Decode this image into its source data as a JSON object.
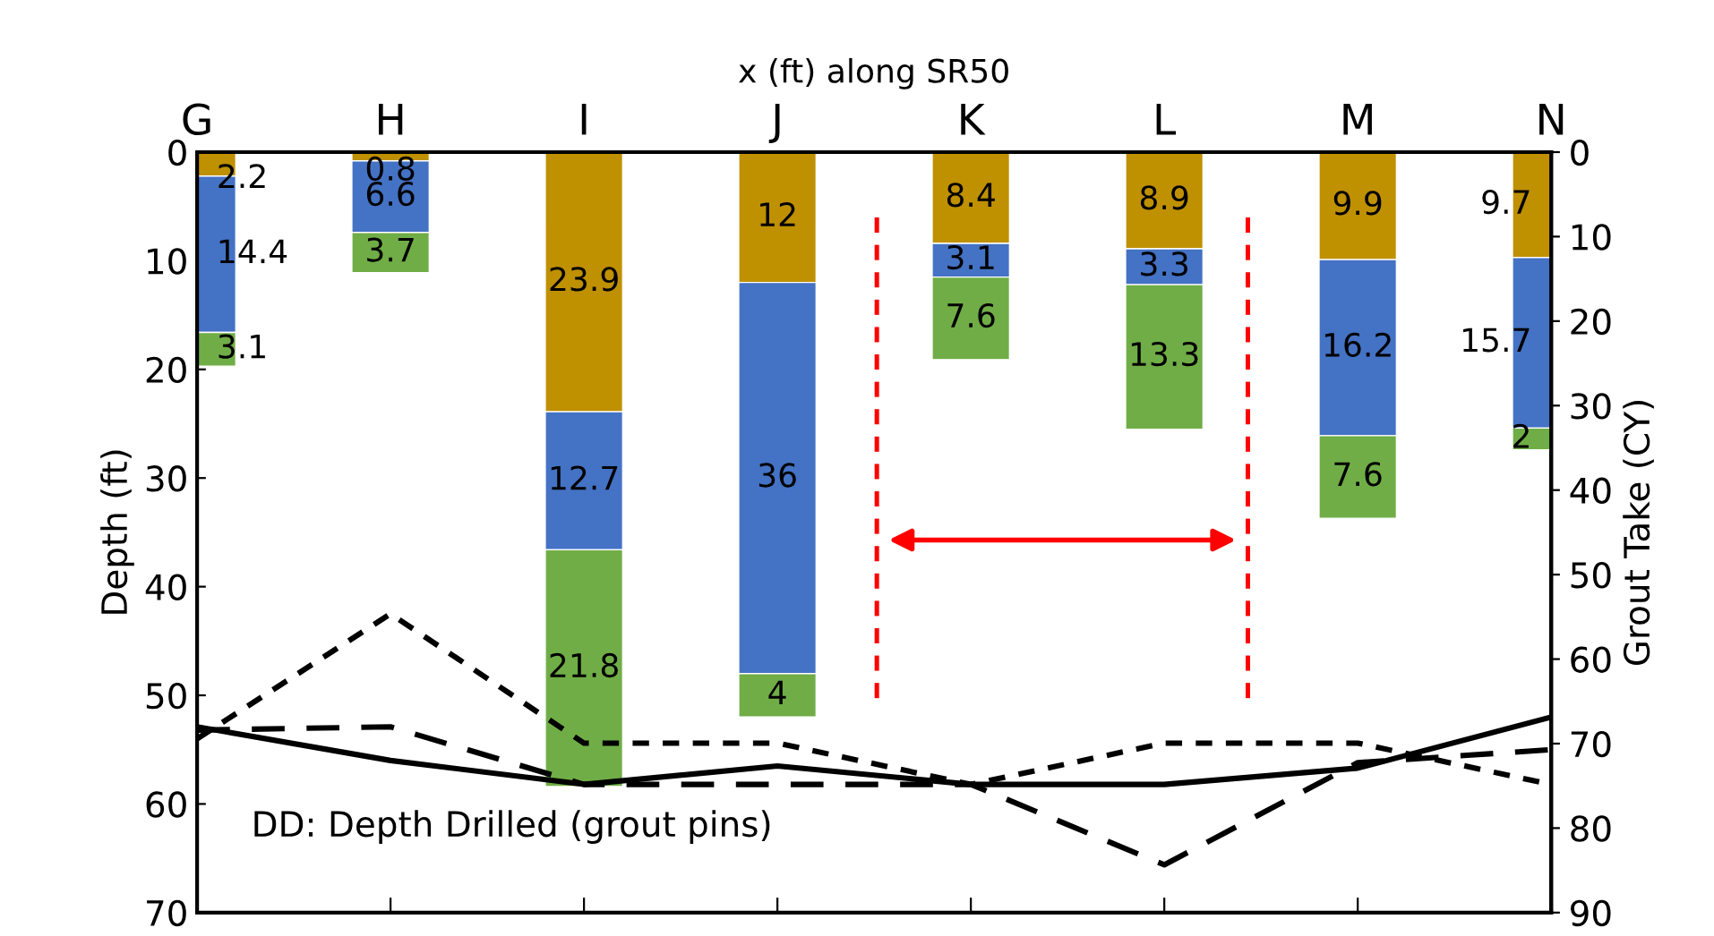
{
  "chart_data": {
    "type": "bar",
    "stacked": true,
    "xlabel": "x (ft) along SR50",
    "ylabel": "Depth (ft)",
    "y2label": "Grout Take (CY)",
    "categories": [
      "G",
      "H",
      "I",
      "J",
      "K",
      "L",
      "M",
      "N"
    ],
    "series": [
      {
        "color": "#bf9000",
        "values": [
          2.2,
          0.8,
          23.9,
          12,
          8.4,
          8.9,
          9.9,
          9.7
        ],
        "value_labels": [
          "2.2",
          "0.8",
          "23.9",
          "12",
          "8.4",
          "8.9",
          "9.9",
          "9.7"
        ]
      },
      {
        "color": "#4472c4",
        "values": [
          14.4,
          6.6,
          12.7,
          36,
          3.1,
          3.3,
          16.2,
          15.7
        ],
        "value_labels": [
          "14.4",
          "6.6",
          "12.7",
          "36",
          "3.1",
          "3.3",
          "16.2",
          "15.7"
        ]
      },
      {
        "color": "#70ad47",
        "values": [
          3.1,
          3.7,
          21.8,
          4,
          7.6,
          13.3,
          7.6,
          2
        ],
        "value_labels": [
          "3.1",
          "3.7",
          "21.8",
          "4",
          "7.6",
          "13.3",
          "7.6",
          "2"
        ]
      },
      {
        "type": "line",
        "color": "#000000",
        "line_style": "solid",
        "values": [
          52.9,
          56,
          58.2,
          56.5,
          58.2,
          58.2,
          56.7,
          52
        ]
      },
      {
        "type": "line",
        "color": "#000000",
        "line_style": "dashed",
        "values": [
          53.2,
          52.9,
          58.2,
          58.2,
          58.2,
          65.6,
          56.2,
          55
        ]
      },
      {
        "type": "line",
        "color": "#000000",
        "line_style": "dotted",
        "values": [
          54,
          42.5,
          54.4,
          54.4,
          58.2,
          54.4,
          54.4,
          58.2
        ]
      }
    ],
    "ylim": [
      70,
      0
    ],
    "yticks": [
      0,
      10,
      20,
      30,
      40,
      50,
      60,
      70
    ],
    "y2lim": [
      90,
      0
    ],
    "y2ticks": [
      0,
      10,
      20,
      30,
      40,
      50,
      60,
      70,
      80,
      90
    ],
    "annotations": [
      "DD: Depth Drilled (grout pins)"
    ],
    "grid": false,
    "legend": false
  }
}
